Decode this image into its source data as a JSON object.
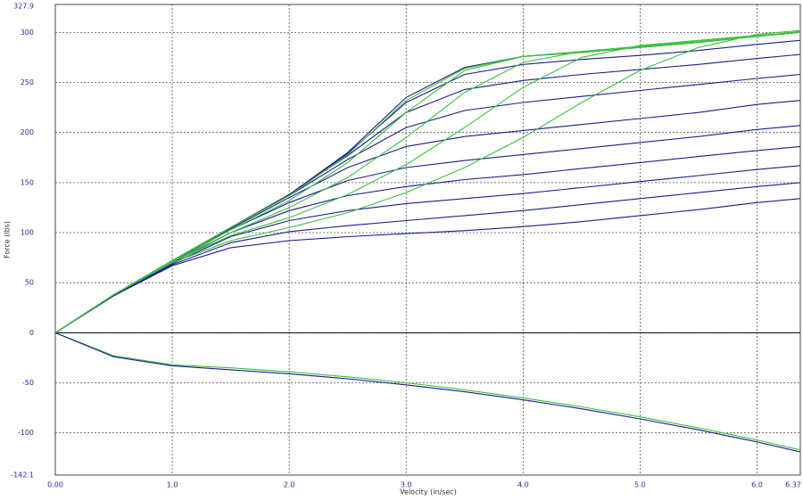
{
  "chart_data": {
    "type": "line",
    "x_label": "Velocity (in/sec)",
    "y_label": "Force (lbs)",
    "x": [
      0,
      0.5,
      1,
      1.5,
      2,
      2.5,
      3,
      3.5,
      4,
      4.5,
      5,
      5.5,
      6,
      6.37
    ],
    "series": [
      {
        "color": "#1c1c8f",
        "values": [
          0,
          37,
          67,
          85,
          92,
          96,
          99,
          102,
          106,
          111,
          117,
          123,
          130,
          134
        ]
      },
      {
        "color": "#1c1c8f",
        "values": [
          0,
          37,
          68,
          90,
          101,
          107,
          112,
          117,
          122,
          128,
          134,
          140,
          146,
          150
        ]
      },
      {
        "color": "#1c1c8f",
        "values": [
          0,
          37,
          69,
          96,
          112,
          122,
          129,
          134,
          139,
          145,
          151,
          157,
          163,
          167
        ]
      },
      {
        "color": "#1c1c8f",
        "values": [
          0,
          38,
          70,
          100,
          122,
          137,
          146,
          153,
          158,
          164,
          170,
          176,
          182,
          186
        ]
      },
      {
        "color": "#1c1c8f",
        "values": [
          0,
          38,
          71,
          103,
          130,
          152,
          165,
          172,
          178,
          184,
          190,
          196,
          203,
          207
        ]
      },
      {
        "color": "#1c1c8f",
        "values": [
          0,
          38,
          72,
          104,
          135,
          165,
          186,
          196,
          202,
          208,
          214,
          220,
          228,
          232
        ]
      },
      {
        "color": "#1c1c8f",
        "values": [
          0,
          38,
          72,
          105,
          137,
          173,
          205,
          222,
          230,
          236,
          242,
          248,
          254,
          258
        ]
      },
      {
        "color": "#1c1c8f",
        "values": [
          0,
          38,
          72,
          105,
          138,
          177,
          220,
          243,
          252,
          258,
          263,
          268,
          274,
          278
        ]
      },
      {
        "color": "#1c1c8f",
        "values": [
          0,
          38,
          72,
          105,
          138,
          179,
          230,
          258,
          268,
          273,
          277,
          282,
          288,
          292
        ]
      },
      {
        "color": "#1c1c8f",
        "values": [
          0,
          38,
          72,
          105,
          138,
          180,
          235,
          265,
          276,
          280,
          285,
          290,
          296,
          300
        ]
      },
      {
        "color": "#3cc03c",
        "values": [
          0,
          38,
          70,
          92,
          105,
          120,
          140,
          165,
          195,
          230,
          262,
          285,
          298,
          302
        ]
      },
      {
        "color": "#3cc03c",
        "values": [
          0,
          38,
          71,
          97,
          115,
          138,
          168,
          205,
          245,
          275,
          287,
          292,
          297,
          300
        ]
      },
      {
        "color": "#3cc03c",
        "values": [
          0,
          38,
          71,
          100,
          125,
          155,
          195,
          240,
          270,
          281,
          286,
          291,
          296,
          300
        ]
      },
      {
        "color": "#3cc03c",
        "values": [
          0,
          38,
          72,
          103,
          132,
          170,
          220,
          262,
          276,
          281,
          286,
          291,
          296,
          300
        ]
      },
      {
        "color": "#3cc03c",
        "values": [
          0,
          38,
          72,
          105,
          137,
          178,
          232,
          264,
          276,
          280,
          285,
          290,
          296,
          301
        ]
      },
      {
        "color": "#3cc03c",
        "values": [
          0,
          -23,
          -32,
          -35,
          -39,
          -44,
          -50,
          -57,
          -65,
          -74,
          -84,
          -95,
          -107,
          -117
        ]
      },
      {
        "color": "#1c1c8f",
        "values": [
          0,
          -24,
          -33,
          -37,
          -41,
          -46,
          -52,
          -59,
          -67,
          -76,
          -86,
          -97,
          -109,
          -119
        ]
      }
    ],
    "xlim": [
      0,
      6.37
    ],
    "xticks": [
      {
        "value": 0,
        "label": "0.00"
      },
      {
        "value": 1,
        "label": "1.0"
      },
      {
        "value": 2,
        "label": "2.0"
      },
      {
        "value": 3,
        "label": "3.0"
      },
      {
        "value": 4,
        "label": "4.0"
      },
      {
        "value": 5,
        "label": "5.0"
      },
      {
        "value": 6,
        "label": "6.0"
      },
      6.37
    ],
    "ylim": [
      -142.1,
      327.9
    ],
    "yticks": [
      -142.1,
      -100,
      -50,
      0,
      50,
      100,
      150,
      200,
      250,
      300,
      327.9
    ],
    "grid": true
  }
}
